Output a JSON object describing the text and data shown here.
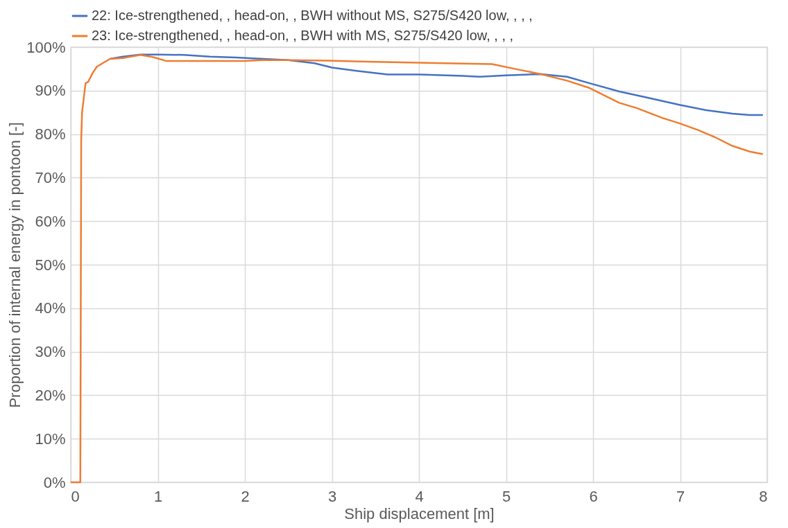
{
  "chart_data": {
    "type": "line",
    "xlabel": "Ship displacement [m]",
    "ylabel": "Proportion of internal energy in pontoon [-]",
    "xlim": [
      0,
      8
    ],
    "xticks": [
      0,
      1,
      2,
      3,
      4,
      5,
      6,
      7,
      8
    ],
    "ylim": [
      0,
      100
    ],
    "yticks": [
      {
        "value": 0,
        "label": "0%"
      },
      {
        "value": 10,
        "label": "10%"
      },
      {
        "value": 20,
        "label": "20%"
      },
      {
        "value": 30,
        "label": "30%"
      },
      {
        "value": 40,
        "label": "40%"
      },
      {
        "value": 50,
        "label": "50%"
      },
      {
        "value": 60,
        "label": "60%"
      },
      {
        "value": 70,
        "label": "70%"
      },
      {
        "value": 80,
        "label": "80%"
      },
      {
        "value": 90,
        "label": "90%"
      },
      {
        "value": 100,
        "label": "100%"
      }
    ],
    "grid": true,
    "legend": "top",
    "marker": "none",
    "line_style": "solid",
    "series": [
      {
        "name": "22: Ice-strengthened, , head-on, , BWH without MS, S275/S420 low, , , ,",
        "color": "#4472c4",
        "x": [
          0.45,
          0.6,
          0.8,
          1.0,
          1.3,
          1.6,
          1.9,
          2.1,
          2.5,
          2.8,
          3.0,
          3.3,
          3.64,
          4.0,
          4.5,
          4.7,
          5.0,
          5.4,
          5.7,
          5.96,
          6.3,
          6.6,
          7.0,
          7.3,
          7.6,
          7.8,
          7.95
        ],
        "values": [
          97.3,
          97.8,
          98.3,
          98.3,
          98.2,
          97.8,
          97.6,
          97.4,
          97,
          96.3,
          95.3,
          94.5,
          93.7,
          93.7,
          93.4,
          93.2,
          93.5,
          93.8,
          93.2,
          91.7,
          89.8,
          88.5,
          86.7,
          85.5,
          84.7,
          84.4,
          84.4
        ]
      },
      {
        "name": "23: Ice-strengthened, , head-on, , BWH with MS, S275/S420 low, , , ,",
        "color": "#ed7d31",
        "x": [
          0,
          0.11,
          0.12,
          0.13,
          0.17,
          0.2,
          0.25,
          0.3,
          0.45,
          0.6,
          0.8,
          0.95,
          1.1,
          1.5,
          2.0,
          2.2,
          2.5,
          2.95,
          3.5,
          4.0,
          4.5,
          4.84,
          5.1,
          5.4,
          5.7,
          5.96,
          6.3,
          6.5,
          6.8,
          6.99,
          7.2,
          7.4,
          7.6,
          7.8,
          7.95
        ],
        "values": [
          0,
          0,
          78.6,
          85,
          91.7,
          92,
          94,
          95.5,
          97.3,
          97.5,
          98.2,
          97.7,
          96.8,
          96.8,
          96.8,
          97,
          97,
          96.9,
          96.6,
          96.4,
          96.2,
          96.1,
          95,
          93.8,
          92.3,
          90.6,
          87.2,
          86,
          83.7,
          82.5,
          81,
          79.3,
          77.3,
          76,
          75.4
        ]
      }
    ]
  }
}
